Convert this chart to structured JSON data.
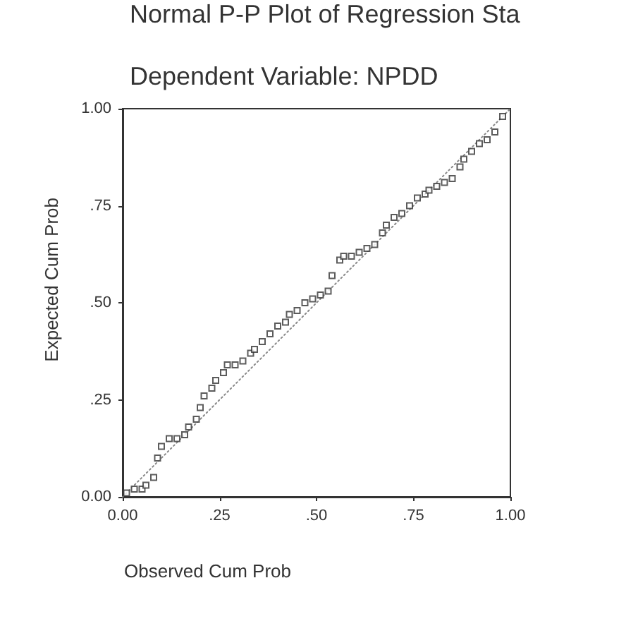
{
  "chart_data": {
    "type": "scatter",
    "title": "Normal P-P Plot of Regression Sta",
    "subtitle": "Dependent Variable: NPDD",
    "xlabel": "Observed Cum Prob",
    "ylabel": "Expected Cum Prob",
    "xlim": [
      0,
      1
    ],
    "ylim": [
      0,
      1
    ],
    "xticks": [
      {
        "value": 0,
        "label": "0.00"
      },
      {
        "value": 0.25,
        "label": ".25"
      },
      {
        "value": 0.5,
        "label": ".50"
      },
      {
        "value": 0.75,
        "label": ".75"
      },
      {
        "value": 1,
        "label": "1.00"
      }
    ],
    "yticks": [
      {
        "value": 0,
        "label": "0.00"
      },
      {
        "value": 0.25,
        "label": ".25"
      },
      {
        "value": 0.5,
        "label": ".50"
      },
      {
        "value": 0.75,
        "label": ".75"
      },
      {
        "value": 1,
        "label": "1.00"
      }
    ],
    "marker": "square",
    "series": [
      {
        "color": "#333333",
        "x": [
          0.01,
          0.03,
          0.05,
          0.06,
          0.08,
          0.09,
          0.1,
          0.12,
          0.14,
          0.16,
          0.17,
          0.19,
          0.2,
          0.21,
          0.23,
          0.24,
          0.26,
          0.27,
          0.29,
          0.31,
          0.33,
          0.34,
          0.36,
          0.38,
          0.4,
          0.42,
          0.43,
          0.45,
          0.47,
          0.49,
          0.51,
          0.53,
          0.54,
          0.56,
          0.57,
          0.59,
          0.61,
          0.63,
          0.65,
          0.67,
          0.68,
          0.7,
          0.72,
          0.74,
          0.76,
          0.78,
          0.79,
          0.81,
          0.83,
          0.85,
          0.87,
          0.88,
          0.9,
          0.92,
          0.94,
          0.96,
          0.98
        ],
        "values": [
          0.01,
          0.02,
          0.02,
          0.03,
          0.05,
          0.1,
          0.13,
          0.15,
          0.15,
          0.16,
          0.18,
          0.2,
          0.23,
          0.26,
          0.28,
          0.3,
          0.32,
          0.34,
          0.34,
          0.35,
          0.37,
          0.38,
          0.4,
          0.42,
          0.44,
          0.45,
          0.47,
          0.48,
          0.5,
          0.51,
          0.52,
          0.53,
          0.57,
          0.61,
          0.62,
          0.62,
          0.63,
          0.64,
          0.65,
          0.68,
          0.7,
          0.72,
          0.73,
          0.75,
          0.77,
          0.78,
          0.79,
          0.8,
          0.81,
          0.82,
          0.85,
          0.87,
          0.89,
          0.91,
          0.92,
          0.94,
          0.98
        ]
      },
      {
        "type": "line",
        "color": "#888888",
        "marker": "none",
        "line_style": "dotted",
        "x": [
          0,
          1
        ],
        "values": [
          0,
          1
        ]
      }
    ]
  }
}
